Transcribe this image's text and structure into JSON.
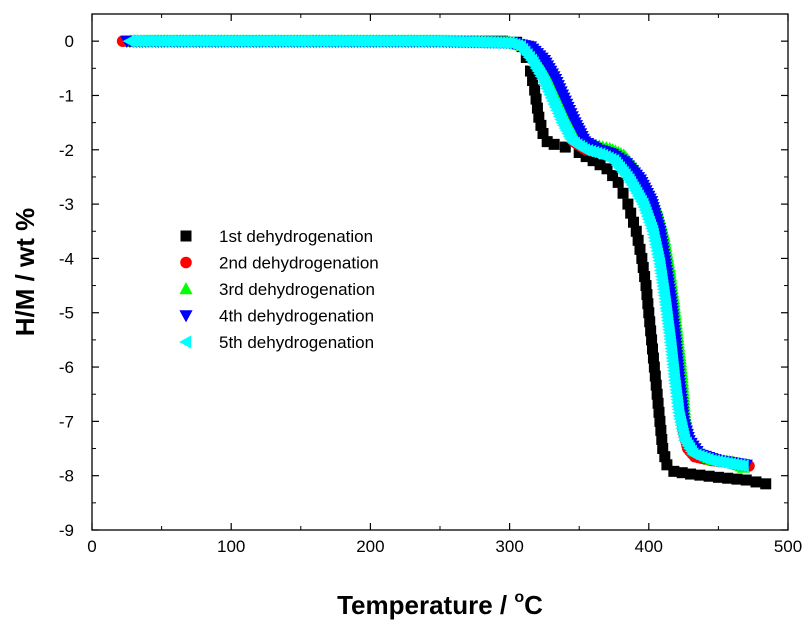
{
  "chart_data": {
    "type": "scatter",
    "xlabel": "Temperature / °C",
    "xlabel_parts": {
      "text": "Temperature / ",
      "sup": "o",
      "unit": "C"
    },
    "ylabel": "H/M / wt %",
    "xlim": [
      0,
      500
    ],
    "ylim": [
      -9,
      0.5
    ],
    "xticks": [
      0,
      100,
      200,
      300,
      400,
      500
    ],
    "yticks": [
      0,
      -1,
      -2,
      -3,
      -4,
      -5,
      -6,
      -7,
      -8,
      -9
    ],
    "grid": false,
    "legend_position": "center-left",
    "series": [
      {
        "name": "1st dehydrogenation",
        "marker": "square",
        "color": "#000000",
        "points": [
          [
            25,
            0
          ],
          [
            30,
            0
          ],
          [
            50,
            0
          ],
          [
            100,
            0
          ],
          [
            150,
            0
          ],
          [
            200,
            0
          ],
          [
            250,
            0
          ],
          [
            295,
            0
          ],
          [
            305,
            -0.02
          ],
          [
            309,
            -0.1
          ],
          [
            312,
            -0.3
          ],
          [
            315,
            -0.55
          ],
          [
            318,
            -0.9
          ],
          [
            321,
            -1.4
          ],
          [
            324,
            -1.7
          ],
          [
            327,
            -1.85
          ],
          [
            332,
            -1.9
          ],
          [
            340,
            -1.95
          ],
          [
            350,
            -2.05
          ],
          [
            360,
            -2.2
          ],
          [
            370,
            -2.35
          ],
          [
            378,
            -2.6
          ],
          [
            385,
            -3.0
          ],
          [
            391,
            -3.5
          ],
          [
            395,
            -4.0
          ],
          [
            398,
            -4.5
          ],
          [
            400,
            -5.0
          ],
          [
            402,
            -5.5
          ],
          [
            404,
            -6.0
          ],
          [
            406,
            -6.5
          ],
          [
            408,
            -7.0
          ],
          [
            410,
            -7.5
          ],
          [
            413,
            -7.8
          ],
          [
            418,
            -7.92
          ],
          [
            430,
            -7.97
          ],
          [
            450,
            -8.03
          ],
          [
            470,
            -8.08
          ],
          [
            484,
            -8.15
          ]
        ]
      },
      {
        "name": "2nd dehydrogenation",
        "marker": "circle",
        "color": "#ff0000",
        "points": [
          [
            22,
            0
          ],
          [
            30,
            0
          ],
          [
            50,
            0
          ],
          [
            100,
            0
          ],
          [
            150,
            0
          ],
          [
            200,
            0
          ],
          [
            250,
            0
          ],
          [
            300,
            -0.02
          ],
          [
            310,
            -0.1
          ],
          [
            318,
            -0.3
          ],
          [
            325,
            -0.6
          ],
          [
            332,
            -1.0
          ],
          [
            340,
            -1.5
          ],
          [
            346,
            -1.85
          ],
          [
            355,
            -2.0
          ],
          [
            365,
            -2.05
          ],
          [
            375,
            -2.15
          ],
          [
            385,
            -2.4
          ],
          [
            395,
            -2.8
          ],
          [
            402,
            -3.3
          ],
          [
            408,
            -3.8
          ],
          [
            412,
            -4.5
          ],
          [
            416,
            -5.2
          ],
          [
            419,
            -6.0
          ],
          [
            422,
            -6.7
          ],
          [
            425,
            -7.2
          ],
          [
            428,
            -7.5
          ],
          [
            433,
            -7.65
          ],
          [
            445,
            -7.72
          ],
          [
            460,
            -7.75
          ],
          [
            472,
            -7.82
          ]
        ]
      },
      {
        "name": "3rd dehydrogenation",
        "marker": "triangle-up",
        "color": "#00ff00",
        "points": [
          [
            28,
            0
          ],
          [
            50,
            0
          ],
          [
            100,
            0
          ],
          [
            150,
            0
          ],
          [
            200,
            0
          ],
          [
            250,
            0
          ],
          [
            300,
            -0.02
          ],
          [
            312,
            -0.1
          ],
          [
            320,
            -0.3
          ],
          [
            328,
            -0.6
          ],
          [
            336,
            -1.0
          ],
          [
            344,
            -1.5
          ],
          [
            352,
            -1.85
          ],
          [
            362,
            -1.92
          ],
          [
            372,
            -1.98
          ],
          [
            382,
            -2.1
          ],
          [
            392,
            -2.4
          ],
          [
            400,
            -2.75
          ],
          [
            406,
            -3.1
          ],
          [
            411,
            -3.6
          ],
          [
            415,
            -4.2
          ],
          [
            418,
            -4.8
          ],
          [
            421,
            -5.5
          ],
          [
            424,
            -6.2
          ],
          [
            426,
            -6.9
          ],
          [
            429,
            -7.3
          ],
          [
            434,
            -7.55
          ],
          [
            445,
            -7.7
          ],
          [
            460,
            -7.75
          ],
          [
            468,
            -7.85
          ]
        ]
      },
      {
        "name": "4th dehydrogenation",
        "marker": "triangle-down",
        "color": "#0000ff",
        "points": [
          [
            25,
            0
          ],
          [
            50,
            0
          ],
          [
            100,
            0
          ],
          [
            150,
            0
          ],
          [
            200,
            0
          ],
          [
            250,
            0
          ],
          [
            300,
            -0.02
          ],
          [
            315,
            -0.1
          ],
          [
            325,
            -0.35
          ],
          [
            333,
            -0.7
          ],
          [
            340,
            -1.1
          ],
          [
            347,
            -1.5
          ],
          [
            354,
            -1.85
          ],
          [
            364,
            -2.0
          ],
          [
            374,
            -2.08
          ],
          [
            384,
            -2.25
          ],
          [
            394,
            -2.55
          ],
          [
            402,
            -2.95
          ],
          [
            408,
            -3.5
          ],
          [
            412,
            -4.1
          ],
          [
            416,
            -4.8
          ],
          [
            419,
            -5.5
          ],
          [
            422,
            -6.3
          ],
          [
            425,
            -7.0
          ],
          [
            429,
            -7.35
          ],
          [
            436,
            -7.6
          ],
          [
            450,
            -7.72
          ],
          [
            470,
            -7.8
          ]
        ]
      },
      {
        "name": "5th dehydrogenation",
        "marker": "triangle-left",
        "color": "#00ffff",
        "points": [
          [
            27,
            0
          ],
          [
            50,
            0
          ],
          [
            100,
            0
          ],
          [
            150,
            0
          ],
          [
            200,
            0
          ],
          [
            250,
            0
          ],
          [
            300,
            -0.03
          ],
          [
            308,
            -0.1
          ],
          [
            316,
            -0.35
          ],
          [
            324,
            -0.7
          ],
          [
            331,
            -1.1
          ],
          [
            338,
            -1.5
          ],
          [
            345,
            -1.85
          ],
          [
            354,
            -2.0
          ],
          [
            365,
            -2.08
          ],
          [
            375,
            -2.2
          ],
          [
            386,
            -2.55
          ],
          [
            396,
            -3.0
          ],
          [
            403,
            -3.5
          ],
          [
            408,
            -4.1
          ],
          [
            412,
            -4.8
          ],
          [
            416,
            -5.6
          ],
          [
            419,
            -6.3
          ],
          [
            422,
            -6.9
          ],
          [
            426,
            -7.35
          ],
          [
            432,
            -7.6
          ],
          [
            445,
            -7.72
          ],
          [
            468,
            -7.82
          ]
        ]
      }
    ]
  }
}
